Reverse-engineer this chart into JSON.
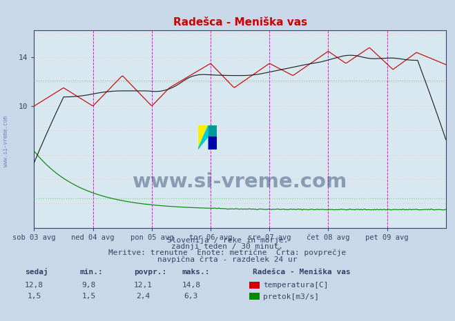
{
  "title": "Radešca - Meniška vas",
  "title_color": "#cc0000",
  "bg_color": "#c8d8e8",
  "plot_bg_color": "#d8e8f0",
  "temp_color": "#cc0000",
  "flow_color": "#008800",
  "avg_temp_color": "#ff8888",
  "avg_flow_color": "#88cc88",
  "black_line_color": "#333333",
  "magenta_color": "#ff00ff",
  "x_tick_labels": [
    "sob 03 avg",
    "ned 04 avg",
    "pon 05 avg",
    "tor 06 avg",
    "sre 07 avg",
    "čet 08 avg",
    "pet 09 avg"
  ],
  "y_ticks": [
    10,
    14
  ],
  "ylim": [
    0.0,
    16.2
  ],
  "xlim": [
    0,
    7
  ],
  "temp_avg": 12.1,
  "temp_min": 9.8,
  "temp_max": 14.8,
  "temp_current": 12.8,
  "flow_avg": 2.4,
  "flow_min": 1.5,
  "flow_max": 6.3,
  "flow_current": 1.5,
  "watermark_text": "www.si-vreme.com",
  "watermark_color": "#1a3560",
  "subtitle1": "Slovenija / reke in morje.",
  "subtitle2": "zadnji teden / 30 minut.",
  "subtitle3": "Meritve: trenutne  Enote: metrične  Črta: povprečje",
  "subtitle4": "navpična črta - razdelek 24 ur",
  "subtitle_color": "#334466",
  "table_header_color": "#334466",
  "table_val_color": "#334466",
  "legend_title": "Radešca - Meniška vas",
  "legend_items": [
    "temperatura[C]",
    "pretok[m3/s]"
  ],
  "legend_colors": [
    "#cc0000",
    "#008800"
  ],
  "left_watermark": "www.si-vreme.com"
}
